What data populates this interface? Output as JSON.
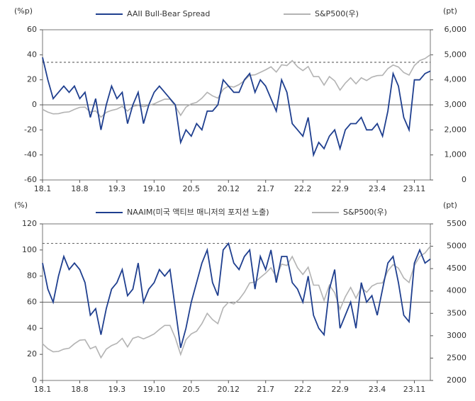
{
  "chart_data": [
    {
      "type": "line",
      "y_unit": "(%p)",
      "y2_unit": "(pt)",
      "categories": [
        "18.1",
        null,
        null,
        null,
        null,
        null,
        null,
        "18.8",
        null,
        null,
        null,
        null,
        null,
        null,
        "19.3",
        null,
        null,
        null,
        null,
        null,
        null,
        "19.10",
        null,
        null,
        null,
        null,
        null,
        null,
        "20.5",
        null,
        null,
        null,
        null,
        null,
        null,
        "20.12",
        null,
        null,
        null,
        null,
        null,
        null,
        "21.7",
        null,
        null,
        null,
        null,
        null,
        null,
        "22.2",
        null,
        null,
        null,
        null,
        null,
        null,
        "22.9",
        null,
        null,
        null,
        null,
        null,
        null,
        "23.4",
        null,
        null,
        null,
        null,
        null,
        null,
        "23.11",
        null,
        null,
        null
      ],
      "ylim": [
        -60,
        60
      ],
      "yticks": [
        -60,
        -40,
        -20,
        0,
        20,
        40,
        60
      ],
      "y2lim": [
        0,
        6000
      ],
      "y2ticks": [
        0,
        {
          "value": 1000,
          "label": "1,000"
        },
        {
          "value": 2000,
          "label": "2,000"
        },
        {
          "value": 3000,
          "label": "3,000"
        },
        {
          "value": 4000,
          "label": "4,000"
        },
        {
          "value": 5000,
          "label": "5,000"
        },
        {
          "value": 6000,
          "label": "6,000"
        }
      ],
      "ref_lines": [
        {
          "value": 34,
          "style": "dashed"
        },
        {
          "value": 0,
          "style": "solid"
        }
      ],
      "series": [
        {
          "name": "AAII Bull-Bear Spread",
          "color": "#1f3f8f",
          "values": [
            38,
            20,
            5,
            10,
            15,
            10,
            15,
            5,
            10,
            -10,
            5,
            -20,
            0,
            15,
            5,
            10,
            -15,
            0,
            10,
            -15,
            0,
            10,
            15,
            10,
            5,
            0,
            -30,
            -20,
            -25,
            -15,
            -20,
            -5,
            -5,
            0,
            20,
            15,
            10,
            10,
            20,
            25,
            10,
            20,
            15,
            5,
            -5,
            20,
            10,
            -15,
            -20,
            -25,
            -10,
            -40,
            -30,
            -35,
            -25,
            -20,
            -35,
            -20,
            -15,
            -15,
            -10,
            -20,
            -20,
            -15,
            -25,
            -5,
            25,
            15,
            -10,
            -20,
            20,
            20,
            25,
            27
          ]
        },
        {
          "name": "S&P500(우)",
          "color": "#b3b3b3",
          "axis": "y2",
          "values": [
            2820,
            2710,
            2640,
            2650,
            2700,
            2720,
            2820,
            2900,
            2910,
            2710,
            2760,
            2510,
            2700,
            2780,
            2830,
            2940,
            2750,
            2940,
            2980,
            2930,
            2980,
            3040,
            3140,
            3230,
            3230,
            2950,
            2580,
            2910,
            3040,
            3100,
            3270,
            3500,
            3360,
            3270,
            3620,
            3750,
            3710,
            3810,
            3970,
            4180,
            4200,
            4300,
            4400,
            4520,
            4310,
            4600,
            4570,
            4770,
            4520,
            4370,
            4530,
            4130,
            4130,
            3790,
            4130,
            3960,
            3590,
            3870,
            4080,
            3840,
            4080,
            3970,
            4110,
            4170,
            4180,
            4450,
            4590,
            4510,
            4290,
            4190,
            4570,
            4770,
            4850,
            5000
          ]
        }
      ]
    },
    {
      "type": "line",
      "y_unit": "(%)",
      "y2_unit": "(pt)",
      "categories": [
        "18.1",
        null,
        null,
        null,
        null,
        null,
        null,
        "18.8",
        null,
        null,
        null,
        null,
        null,
        null,
        "19.3",
        null,
        null,
        null,
        null,
        null,
        null,
        "19.10",
        null,
        null,
        null,
        null,
        null,
        null,
        "20.5",
        null,
        null,
        null,
        null,
        null,
        null,
        "20.12",
        null,
        null,
        null,
        null,
        null,
        null,
        "21.7",
        null,
        null,
        null,
        null,
        null,
        null,
        "22.2",
        null,
        null,
        null,
        null,
        null,
        null,
        "22.9",
        null,
        null,
        null,
        null,
        null,
        null,
        "23.4",
        null,
        null,
        null,
        null,
        null,
        null,
        "23.11",
        null,
        null,
        null
      ],
      "ylim": [
        0,
        120
      ],
      "yticks": [
        0,
        20,
        40,
        60,
        80,
        100,
        120
      ],
      "y2lim": [
        2000,
        5500
      ],
      "y2ticks": [
        2000,
        2500,
        3000,
        3500,
        4000,
        4500,
        5000,
        5500
      ],
      "ref_lines": [
        {
          "value": 105,
          "style": "dashed"
        },
        {
          "value": 60,
          "style": "solid"
        }
      ],
      "series": [
        {
          "name": "NAAIM(미국 액티브 매니저의 포지션 노출)",
          "color": "#1f3f8f",
          "values": [
            90,
            70,
            60,
            80,
            95,
            85,
            90,
            85,
            75,
            50,
            55,
            35,
            55,
            70,
            75,
            85,
            65,
            70,
            90,
            60,
            70,
            75,
            85,
            80,
            85,
            55,
            25,
            40,
            60,
            75,
            90,
            100,
            75,
            65,
            100,
            105,
            90,
            85,
            95,
            100,
            70,
            95,
            85,
            100,
            75,
            95,
            95,
            75,
            70,
            60,
            80,
            50,
            40,
            35,
            70,
            85,
            40,
            50,
            60,
            40,
            75,
            60,
            65,
            50,
            70,
            90,
            95,
            75,
            50,
            45,
            90,
            100,
            90,
            93
          ]
        },
        {
          "name": "S&P500(우)",
          "color": "#b3b3b3",
          "axis": "y2",
          "values": [
            2820,
            2710,
            2640,
            2650,
            2700,
            2720,
            2820,
            2900,
            2910,
            2710,
            2760,
            2510,
            2700,
            2780,
            2830,
            2940,
            2750,
            2940,
            2980,
            2930,
            2980,
            3040,
            3140,
            3230,
            3230,
            2950,
            2580,
            2910,
            3040,
            3100,
            3270,
            3500,
            3360,
            3270,
            3620,
            3750,
            3710,
            3810,
            3970,
            4180,
            4200,
            4300,
            4400,
            4520,
            4310,
            4600,
            4570,
            4770,
            4520,
            4370,
            4530,
            4130,
            4130,
            3790,
            4130,
            3960,
            3590,
            3870,
            4080,
            3840,
            4080,
            3970,
            4110,
            4170,
            4180,
            4450,
            4590,
            4510,
            4290,
            4190,
            4570,
            4770,
            4850,
            5000
          ]
        }
      ]
    }
  ]
}
